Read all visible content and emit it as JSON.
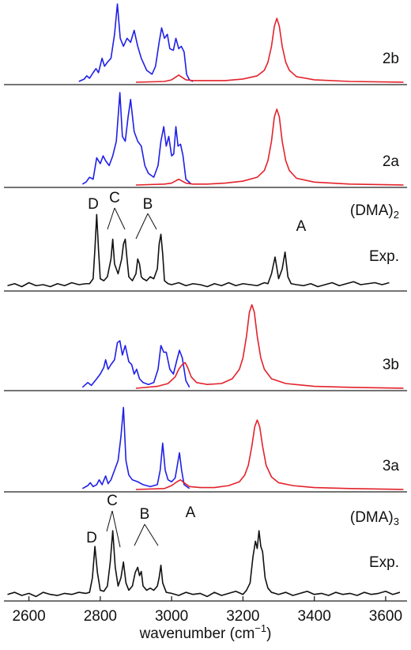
{
  "chart_data": [
    {
      "type": "line",
      "label": "2b",
      "xlim": [
        2530,
        3660
      ],
      "ylim": [
        0,
        1
      ],
      "series": [
        {
          "name": "2b-blue",
          "color": "#1f1fe8",
          "x": [
            2740,
            2755,
            2762,
            2770,
            2780,
            2788,
            2795,
            2805,
            2812,
            2820,
            2830,
            2840,
            2848,
            2856,
            2865,
            2875,
            2885,
            2895,
            2905,
            2915,
            2930,
            2945,
            2955,
            2965,
            2972,
            2980,
            2988,
            2995,
            3005,
            3012,
            3020,
            3027,
            3035,
            3042,
            3050,
            3060
          ],
          "values": [
            0.01,
            0.04,
            0.08,
            0.05,
            0.12,
            0.17,
            0.12,
            0.3,
            0.2,
            0.25,
            0.3,
            0.6,
            0.98,
            0.55,
            0.45,
            0.55,
            0.5,
            0.65,
            0.45,
            0.3,
            0.15,
            0.1,
            0.2,
            0.5,
            0.68,
            0.55,
            0.6,
            0.42,
            0.4,
            0.55,
            0.42,
            0.45,
            0.38,
            0.1,
            0.03,
            0.01
          ]
        },
        {
          "name": "2b-red",
          "color": "#e3222b",
          "x": [
            2900,
            2980,
            3000,
            3010,
            3020,
            3030,
            3040,
            3060,
            3100,
            3150,
            3200,
            3240,
            3260,
            3270,
            3280,
            3288,
            3295,
            3302,
            3310,
            3320,
            3330,
            3350,
            3400,
            3500,
            3650
          ],
          "values": [
            0,
            0.01,
            0.03,
            0.06,
            0.09,
            0.06,
            0.03,
            0.02,
            0.02,
            0.02,
            0.04,
            0.08,
            0.15,
            0.25,
            0.45,
            0.7,
            0.8,
            0.7,
            0.45,
            0.25,
            0.15,
            0.07,
            0.03,
            0.01,
            0
          ]
        }
      ]
    },
    {
      "type": "line",
      "label": "2a",
      "xlim": [
        2530,
        3660
      ],
      "ylim": [
        0,
        1
      ],
      "series": [
        {
          "name": "2a-blue",
          "color": "#1f1fe8",
          "x": [
            2750,
            2760,
            2770,
            2780,
            2790,
            2800,
            2808,
            2815,
            2825,
            2835,
            2845,
            2855,
            2862,
            2870,
            2878,
            2885,
            2895,
            2905,
            2915,
            2925,
            2935,
            2950,
            2962,
            2970,
            2978,
            2985,
            2992,
            3000,
            3006,
            3012,
            3018,
            3025,
            3032,
            3040,
            3055
          ],
          "values": [
            0.01,
            0.03,
            0.08,
            0.06,
            0.28,
            0.22,
            0.3,
            0.25,
            0.2,
            0.3,
            0.45,
            0.95,
            0.5,
            0.45,
            0.7,
            0.88,
            0.55,
            0.45,
            0.4,
            0.2,
            0.12,
            0.08,
            0.2,
            0.45,
            0.6,
            0.4,
            0.5,
            0.3,
            0.32,
            0.6,
            0.4,
            0.42,
            0.3,
            0.06,
            0.01
          ]
        },
        {
          "name": "2a-red",
          "color": "#e3222b",
          "x": [
            2900,
            2980,
            3000,
            3010,
            3020,
            3030,
            3040,
            3060,
            3100,
            3150,
            3200,
            3240,
            3260,
            3270,
            3280,
            3288,
            3295,
            3302,
            3310,
            3320,
            3330,
            3350,
            3400,
            3500,
            3650
          ],
          "values": [
            0,
            0.01,
            0.02,
            0.04,
            0.06,
            0.04,
            0.02,
            0.01,
            0.01,
            0.02,
            0.04,
            0.08,
            0.15,
            0.25,
            0.45,
            0.7,
            0.78,
            0.7,
            0.45,
            0.25,
            0.15,
            0.07,
            0.03,
            0.01,
            0
          ]
        }
      ]
    },
    {
      "type": "line",
      "label": "(DMA)",
      "label_sub": "2",
      "sublabel": "Exp.",
      "annotations": [
        "D",
        "C",
        "B",
        "A"
      ],
      "xlim": [
        2530,
        3660
      ],
      "ylim": [
        0,
        1
      ],
      "series": [
        {
          "name": "dma2-exp",
          "color": "#111111",
          "x": [
            2540,
            2560,
            2580,
            2600,
            2620,
            2640,
            2660,
            2680,
            2700,
            2720,
            2740,
            2760,
            2770,
            2780,
            2785,
            2790,
            2795,
            2800,
            2810,
            2820,
            2830,
            2835,
            2840,
            2850,
            2860,
            2865,
            2870,
            2875,
            2880,
            2890,
            2900,
            2905,
            2910,
            2915,
            2920,
            2930,
            2940,
            2950,
            2960,
            2965,
            2970,
            2975,
            2980,
            2990,
            3000,
            3020,
            3040,
            3060,
            3080,
            3100,
            3120,
            3140,
            3160,
            3180,
            3200,
            3220,
            3240,
            3260,
            3270,
            3280,
            3290,
            3300,
            3310,
            3318,
            3326,
            3335,
            3350,
            3370,
            3390,
            3410,
            3430,
            3450,
            3470,
            3490,
            3510,
            3530,
            3550,
            3570,
            3590,
            3610
          ],
          "values": [
            0.03,
            0.05,
            0.02,
            0.06,
            0.03,
            0.04,
            0.02,
            0.05,
            0.03,
            0.06,
            0.04,
            0.05,
            0.05,
            0.1,
            0.4,
            0.75,
            0.4,
            0.1,
            0.08,
            0.12,
            0.3,
            0.5,
            0.25,
            0.15,
            0.3,
            0.45,
            0.5,
            0.3,
            0.12,
            0.08,
            0.15,
            0.3,
            0.25,
            0.12,
            0.1,
            0.08,
            0.12,
            0.1,
            0.2,
            0.45,
            0.55,
            0.35,
            0.08,
            0.05,
            0.04,
            0.06,
            0.03,
            0.05,
            0.04,
            0.02,
            0.05,
            0.03,
            0.06,
            0.03,
            0.05,
            0.04,
            0.03,
            0.06,
            0.05,
            0.15,
            0.32,
            0.1,
            0.2,
            0.37,
            0.12,
            0.05,
            0.04,
            0.03,
            0.05,
            0.02,
            0.04,
            0.06,
            0.03,
            0.05,
            0.07,
            0.04,
            0.05,
            0.06,
            0.04,
            0.06
          ]
        }
      ]
    },
    {
      "type": "line",
      "label": "3b",
      "xlim": [
        2530,
        3660
      ],
      "ylim": [
        0,
        1
      ],
      "series": [
        {
          "name": "3b-blue",
          "color": "#1f1fe8",
          "x": [
            2750,
            2765,
            2775,
            2790,
            2800,
            2810,
            2815,
            2822,
            2830,
            2840,
            2848,
            2855,
            2862,
            2870,
            2880,
            2888,
            2895,
            2902,
            2910,
            2920,
            2935,
            2950,
            2962,
            2970,
            2978,
            2985,
            2995,
            3005,
            3015,
            3022,
            3030,
            3040,
            3050
          ],
          "values": [
            0.01,
            0.06,
            0.03,
            0.1,
            0.15,
            0.22,
            0.3,
            0.2,
            0.25,
            0.3,
            0.48,
            0.5,
            0.35,
            0.45,
            0.28,
            0.25,
            0.15,
            0.2,
            0.1,
            0.06,
            0.04,
            0.06,
            0.2,
            0.45,
            0.38,
            0.38,
            0.2,
            0.15,
            0.3,
            0.4,
            0.32,
            0.08,
            0.01
          ]
        },
        {
          "name": "3b-red",
          "color": "#e3222b",
          "x": [
            2900,
            2960,
            2990,
            3010,
            3020,
            3030,
            3038,
            3045,
            3055,
            3070,
            3100,
            3140,
            3170,
            3190,
            3200,
            3210,
            3218,
            3225,
            3232,
            3240,
            3250,
            3260,
            3280,
            3320,
            3400,
            3500,
            3650
          ],
          "values": [
            0,
            0.02,
            0.05,
            0.12,
            0.2,
            0.25,
            0.27,
            0.22,
            0.12,
            0.06,
            0.04,
            0.05,
            0.1,
            0.2,
            0.32,
            0.55,
            0.8,
            0.88,
            0.8,
            0.55,
            0.32,
            0.2,
            0.1,
            0.05,
            0.02,
            0.01,
            0
          ]
        }
      ]
    },
    {
      "type": "line",
      "label": "3a",
      "xlim": [
        2530,
        3660
      ],
      "ylim": [
        0,
        1
      ],
      "series": [
        {
          "name": "3a-blue",
          "color": "#1f1fe8",
          "x": [
            2750,
            2765,
            2772,
            2780,
            2790,
            2797,
            2805,
            2815,
            2822,
            2830,
            2840,
            2850,
            2858,
            2865,
            2872,
            2880,
            2890,
            2905,
            2920,
            2940,
            2960,
            2968,
            2975,
            2982,
            2990,
            3000,
            3010,
            3016,
            3022,
            3028,
            3035,
            3050
          ],
          "values": [
            0.01,
            0.04,
            0.07,
            0.03,
            0.05,
            0.1,
            0.05,
            0.14,
            0.06,
            0.1,
            0.2,
            0.3,
            0.55,
            0.85,
            0.3,
            0.15,
            0.1,
            0.08,
            0.05,
            0.03,
            0.05,
            0.2,
            0.48,
            0.2,
            0.1,
            0.08,
            0.12,
            0.25,
            0.38,
            0.2,
            0.05,
            0.01
          ]
        },
        {
          "name": "3a-red",
          "color": "#e3222b",
          "x": [
            2900,
            2980,
            3000,
            3015,
            3025,
            3035,
            3050,
            3080,
            3120,
            3160,
            3190,
            3205,
            3215,
            3225,
            3233,
            3240,
            3247,
            3255,
            3265,
            3280,
            3300,
            3340,
            3400,
            3500,
            3650
          ],
          "values": [
            0,
            0.01,
            0.04,
            0.08,
            0.1,
            0.07,
            0.03,
            0.02,
            0.02,
            0.04,
            0.08,
            0.15,
            0.25,
            0.45,
            0.65,
            0.72,
            0.65,
            0.45,
            0.25,
            0.13,
            0.07,
            0.04,
            0.02,
            0.01,
            0
          ]
        }
      ]
    },
    {
      "type": "line",
      "label": "(DMA)",
      "label_sub": "3",
      "sublabel": "Exp.",
      "annotations": [
        "D",
        "C",
        "B",
        "A"
      ],
      "xlim": [
        2530,
        3660
      ],
      "ylim": [
        0,
        1
      ],
      "xticks": [
        2600,
        2800,
        3000,
        3200,
        3400,
        3600
      ],
      "xlabel": "wavenumber (cm",
      "xlabel_sup": "−1",
      "xlabel_end": ")",
      "series": [
        {
          "name": "dma3-exp",
          "color": "#111111",
          "x": [
            2540,
            2560,
            2580,
            2600,
            2620,
            2640,
            2660,
            2680,
            2700,
            2720,
            2740,
            2760,
            2770,
            2778,
            2785,
            2792,
            2800,
            2810,
            2820,
            2828,
            2835,
            2842,
            2850,
            2858,
            2865,
            2872,
            2880,
            2890,
            2898,
            2905,
            2910,
            2915,
            2920,
            2930,
            2940,
            2950,
            2960,
            2965,
            2970,
            2975,
            2985,
            3000,
            3020,
            3040,
            3060,
            3080,
            3100,
            3120,
            3140,
            3160,
            3180,
            3200,
            3210,
            3220,
            3228,
            3235,
            3240,
            3245,
            3250,
            3255,
            3262,
            3270,
            3280,
            3300,
            3320,
            3340,
            3360,
            3380,
            3400,
            3420,
            3440,
            3460,
            3480,
            3500,
            3520,
            3540,
            3560,
            3580,
            3600,
            3620,
            3640
          ],
          "values": [
            0.04,
            0.06,
            0.03,
            0.05,
            0.02,
            0.06,
            0.04,
            0.03,
            0.05,
            0.04,
            0.06,
            0.05,
            0.06,
            0.2,
            0.5,
            0.25,
            0.08,
            0.07,
            0.12,
            0.35,
            0.65,
            0.3,
            0.12,
            0.2,
            0.35,
            0.15,
            0.08,
            0.12,
            0.25,
            0.3,
            0.22,
            0.26,
            0.12,
            0.08,
            0.1,
            0.08,
            0.12,
            0.2,
            0.32,
            0.15,
            0.06,
            0.05,
            0.03,
            0.06,
            0.04,
            0.05,
            0.02,
            0.06,
            0.03,
            0.05,
            0.07,
            0.04,
            0.08,
            0.15,
            0.4,
            0.55,
            0.48,
            0.65,
            0.5,
            0.45,
            0.2,
            0.1,
            0.06,
            0.04,
            0.06,
            0.03,
            0.05,
            0.07,
            0.04,
            0.05,
            0.03,
            0.06,
            0.04,
            0.05,
            0.03,
            0.06,
            0.04,
            0.05,
            0.07,
            0.04,
            0.06
          ]
        }
      ]
    }
  ]
}
